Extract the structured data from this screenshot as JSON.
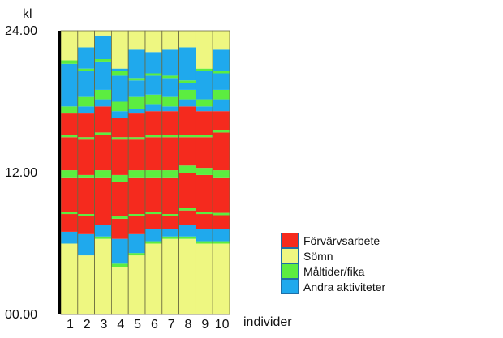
{
  "chart_data": {
    "type": "bar",
    "subtype": "stacked-timeline",
    "ylabel": "kl",
    "xlabel": "individer",
    "y_tick_labels": [
      "00.00",
      "12.00",
      "24.00"
    ],
    "y_tick_values": [
      0,
      12,
      24
    ],
    "ylim": [
      0,
      24
    ],
    "categories": [
      "1",
      "2",
      "3",
      "4",
      "5",
      "6",
      "7",
      "8",
      "9",
      "10"
    ],
    "legend": [
      {
        "key": "work",
        "label": "Förvärvsarbete",
        "color": "#f52a1e"
      },
      {
        "key": "sleep",
        "label": "Sömn",
        "color": "#eef781"
      },
      {
        "key": "meal",
        "label": "Måltider/fika",
        "color": "#5ced40"
      },
      {
        "key": "other",
        "label": "Andra aktiviteter",
        "color": "#1fa9ed"
      }
    ],
    "legend_position": "right",
    "grid": false,
    "individuals": [
      {
        "id": "1",
        "segments": [
          {
            "a": "sleep",
            "from": 0,
            "to": 6.0
          },
          {
            "a": "other",
            "from": 6.0,
            "to": 7.0
          },
          {
            "a": "work",
            "from": 7.0,
            "to": 8.5
          },
          {
            "a": "meal",
            "from": 8.5,
            "to": 8.7
          },
          {
            "a": "work",
            "from": 8.7,
            "to": 11.6
          },
          {
            "a": "meal",
            "from": 11.6,
            "to": 12.2
          },
          {
            "a": "work",
            "from": 12.2,
            "to": 15.0
          },
          {
            "a": "meal",
            "from": 15.0,
            "to": 15.2
          },
          {
            "a": "work",
            "from": 15.2,
            "to": 17.0
          },
          {
            "a": "meal",
            "from": 17.0,
            "to": 17.6
          },
          {
            "a": "other",
            "from": 17.6,
            "to": 21.2
          },
          {
            "a": "meal",
            "from": 21.2,
            "to": 21.5
          },
          {
            "a": "sleep",
            "from": 21.5,
            "to": 24
          }
        ]
      },
      {
        "id": "2",
        "segments": [
          {
            "a": "sleep",
            "from": 0,
            "to": 5.0
          },
          {
            "a": "other",
            "from": 5.0,
            "to": 6.8
          },
          {
            "a": "work",
            "from": 6.8,
            "to": 8.3
          },
          {
            "a": "meal",
            "from": 8.3,
            "to": 8.5
          },
          {
            "a": "work",
            "from": 8.5,
            "to": 11.6
          },
          {
            "a": "meal",
            "from": 11.6,
            "to": 11.8
          },
          {
            "a": "work",
            "from": 11.8,
            "to": 14.8
          },
          {
            "a": "meal",
            "from": 14.8,
            "to": 15.0
          },
          {
            "a": "work",
            "from": 15.0,
            "to": 17.0
          },
          {
            "a": "other",
            "from": 17.0,
            "to": 17.6
          },
          {
            "a": "meal",
            "from": 17.6,
            "to": 18.4
          },
          {
            "a": "other",
            "from": 18.4,
            "to": 20.6
          },
          {
            "a": "meal",
            "from": 20.6,
            "to": 20.8
          },
          {
            "a": "other",
            "from": 20.8,
            "to": 22.6
          },
          {
            "a": "sleep",
            "from": 22.6,
            "to": 24
          }
        ]
      },
      {
        "id": "3",
        "segments": [
          {
            "a": "sleep",
            "from": 0,
            "to": 6.4
          },
          {
            "a": "meal",
            "from": 6.4,
            "to": 6.6
          },
          {
            "a": "other",
            "from": 6.6,
            "to": 7.6
          },
          {
            "a": "work",
            "from": 7.6,
            "to": 11.6
          },
          {
            "a": "meal",
            "from": 11.6,
            "to": 12.2
          },
          {
            "a": "work",
            "from": 12.2,
            "to": 15.2
          },
          {
            "a": "meal",
            "from": 15.2,
            "to": 15.4
          },
          {
            "a": "work",
            "from": 15.4,
            "to": 17.6
          },
          {
            "a": "other",
            "from": 17.6,
            "to": 18.2
          },
          {
            "a": "meal",
            "from": 18.2,
            "to": 19.0
          },
          {
            "a": "other",
            "from": 19.0,
            "to": 21.4
          },
          {
            "a": "meal",
            "from": 21.4,
            "to": 21.6
          },
          {
            "a": "other",
            "from": 21.6,
            "to": 23.6
          },
          {
            "a": "sleep",
            "from": 23.6,
            "to": 24
          }
        ]
      },
      {
        "id": "4",
        "segments": [
          {
            "a": "sleep",
            "from": 0,
            "to": 4.0
          },
          {
            "a": "meal",
            "from": 4.0,
            "to": 4.3
          },
          {
            "a": "other",
            "from": 4.3,
            "to": 6.4
          },
          {
            "a": "work",
            "from": 6.4,
            "to": 8.1
          },
          {
            "a": "meal",
            "from": 8.1,
            "to": 8.3
          },
          {
            "a": "work",
            "from": 8.3,
            "to": 11.2
          },
          {
            "a": "meal",
            "from": 11.2,
            "to": 11.8
          },
          {
            "a": "work",
            "from": 11.8,
            "to": 14.8
          },
          {
            "a": "meal",
            "from": 14.8,
            "to": 15.0
          },
          {
            "a": "work",
            "from": 15.0,
            "to": 16.6
          },
          {
            "a": "other",
            "from": 16.6,
            "to": 17.2
          },
          {
            "a": "meal",
            "from": 17.2,
            "to": 18.0
          },
          {
            "a": "other",
            "from": 18.0,
            "to": 20.2
          },
          {
            "a": "meal",
            "from": 20.2,
            "to": 20.6
          },
          {
            "a": "other",
            "from": 20.6,
            "to": 20.8
          },
          {
            "a": "sleep",
            "from": 20.8,
            "to": 24
          }
        ]
      },
      {
        "id": "5",
        "segments": [
          {
            "a": "sleep",
            "from": 0,
            "to": 5.0
          },
          {
            "a": "meal",
            "from": 5.0,
            "to": 5.2
          },
          {
            "a": "other",
            "from": 5.2,
            "to": 6.8
          },
          {
            "a": "work",
            "from": 6.8,
            "to": 8.3
          },
          {
            "a": "meal",
            "from": 8.3,
            "to": 8.5
          },
          {
            "a": "work",
            "from": 8.5,
            "to": 11.6
          },
          {
            "a": "meal",
            "from": 11.6,
            "to": 12.2
          },
          {
            "a": "work",
            "from": 12.2,
            "to": 14.8
          },
          {
            "a": "meal",
            "from": 14.8,
            "to": 15.0
          },
          {
            "a": "work",
            "from": 15.0,
            "to": 17.0
          },
          {
            "a": "other",
            "from": 17.0,
            "to": 17.4
          },
          {
            "a": "meal",
            "from": 17.4,
            "to": 18.4
          },
          {
            "a": "other",
            "from": 18.4,
            "to": 19.8
          },
          {
            "a": "meal",
            "from": 19.8,
            "to": 20.0
          },
          {
            "a": "other",
            "from": 20.0,
            "to": 22.4
          },
          {
            "a": "sleep",
            "from": 22.4,
            "to": 24
          }
        ]
      },
      {
        "id": "6",
        "segments": [
          {
            "a": "sleep",
            "from": 0,
            "to": 6.0
          },
          {
            "a": "meal",
            "from": 6.0,
            "to": 6.2
          },
          {
            "a": "other",
            "from": 6.2,
            "to": 7.2
          },
          {
            "a": "work",
            "from": 7.2,
            "to": 8.5
          },
          {
            "a": "meal",
            "from": 8.5,
            "to": 8.7
          },
          {
            "a": "work",
            "from": 8.7,
            "to": 11.6
          },
          {
            "a": "meal",
            "from": 11.6,
            "to": 12.2
          },
          {
            "a": "work",
            "from": 12.2,
            "to": 15.0
          },
          {
            "a": "meal",
            "from": 15.0,
            "to": 15.2
          },
          {
            "a": "work",
            "from": 15.2,
            "to": 17.2
          },
          {
            "a": "other",
            "from": 17.2,
            "to": 17.8
          },
          {
            "a": "meal",
            "from": 17.8,
            "to": 18.6
          },
          {
            "a": "other",
            "from": 18.6,
            "to": 20.2
          },
          {
            "a": "meal",
            "from": 20.2,
            "to": 20.4
          },
          {
            "a": "other",
            "from": 20.4,
            "to": 22.2
          },
          {
            "a": "sleep",
            "from": 22.2,
            "to": 24
          }
        ]
      },
      {
        "id": "7",
        "segments": [
          {
            "a": "sleep",
            "from": 0,
            "to": 6.4
          },
          {
            "a": "meal",
            "from": 6.4,
            "to": 6.6
          },
          {
            "a": "other",
            "from": 6.6,
            "to": 7.2
          },
          {
            "a": "work",
            "from": 7.2,
            "to": 8.3
          },
          {
            "a": "meal",
            "from": 8.3,
            "to": 8.5
          },
          {
            "a": "work",
            "from": 8.5,
            "to": 11.6
          },
          {
            "a": "meal",
            "from": 11.6,
            "to": 12.2
          },
          {
            "a": "work",
            "from": 12.2,
            "to": 15.0
          },
          {
            "a": "meal",
            "from": 15.0,
            "to": 15.2
          },
          {
            "a": "work",
            "from": 15.2,
            "to": 17.2
          },
          {
            "a": "other",
            "from": 17.2,
            "to": 17.6
          },
          {
            "a": "meal",
            "from": 17.6,
            "to": 18.4
          },
          {
            "a": "other",
            "from": 18.4,
            "to": 20.0
          },
          {
            "a": "meal",
            "from": 20.0,
            "to": 20.2
          },
          {
            "a": "other",
            "from": 20.2,
            "to": 22.4
          },
          {
            "a": "sleep",
            "from": 22.4,
            "to": 24
          }
        ]
      },
      {
        "id": "8",
        "segments": [
          {
            "a": "sleep",
            "from": 0,
            "to": 6.4
          },
          {
            "a": "meal",
            "from": 6.4,
            "to": 6.6
          },
          {
            "a": "other",
            "from": 6.6,
            "to": 7.6
          },
          {
            "a": "work",
            "from": 7.6,
            "to": 8.8
          },
          {
            "a": "meal",
            "from": 8.8,
            "to": 9.0
          },
          {
            "a": "work",
            "from": 9.0,
            "to": 12.0
          },
          {
            "a": "meal",
            "from": 12.0,
            "to": 12.6
          },
          {
            "a": "work",
            "from": 12.6,
            "to": 15.0
          },
          {
            "a": "meal",
            "from": 15.0,
            "to": 15.2
          },
          {
            "a": "work",
            "from": 15.2,
            "to": 17.6
          },
          {
            "a": "other",
            "from": 17.6,
            "to": 18.2
          },
          {
            "a": "meal",
            "from": 18.2,
            "to": 19.0
          },
          {
            "a": "other",
            "from": 19.0,
            "to": 19.6
          },
          {
            "a": "meal",
            "from": 19.6,
            "to": 19.8
          },
          {
            "a": "other",
            "from": 19.8,
            "to": 22.6
          },
          {
            "a": "sleep",
            "from": 22.6,
            "to": 24
          }
        ]
      },
      {
        "id": "9",
        "segments": [
          {
            "a": "sleep",
            "from": 0,
            "to": 6.0
          },
          {
            "a": "meal",
            "from": 6.0,
            "to": 6.2
          },
          {
            "a": "other",
            "from": 6.2,
            "to": 7.2
          },
          {
            "a": "work",
            "from": 7.2,
            "to": 8.5
          },
          {
            "a": "meal",
            "from": 8.5,
            "to": 8.7
          },
          {
            "a": "work",
            "from": 8.7,
            "to": 11.8
          },
          {
            "a": "meal",
            "from": 11.8,
            "to": 12.4
          },
          {
            "a": "work",
            "from": 12.4,
            "to": 15.0
          },
          {
            "a": "meal",
            "from": 15.0,
            "to": 15.2
          },
          {
            "a": "work",
            "from": 15.2,
            "to": 17.2
          },
          {
            "a": "other",
            "from": 17.2,
            "to": 17.6
          },
          {
            "a": "meal",
            "from": 17.6,
            "to": 18.2
          },
          {
            "a": "other",
            "from": 18.2,
            "to": 20.6
          },
          {
            "a": "meal",
            "from": 20.6,
            "to": 20.8
          },
          {
            "a": "sleep",
            "from": 20.8,
            "to": 24
          }
        ]
      },
      {
        "id": "10",
        "segments": [
          {
            "a": "sleep",
            "from": 0,
            "to": 6.0
          },
          {
            "a": "meal",
            "from": 6.0,
            "to": 6.2
          },
          {
            "a": "other",
            "from": 6.2,
            "to": 7.2
          },
          {
            "a": "work",
            "from": 7.2,
            "to": 8.4
          },
          {
            "a": "meal",
            "from": 8.4,
            "to": 8.6
          },
          {
            "a": "work",
            "from": 8.6,
            "to": 11.6
          },
          {
            "a": "meal",
            "from": 11.6,
            "to": 12.2
          },
          {
            "a": "work",
            "from": 12.2,
            "to": 15.4
          },
          {
            "a": "meal",
            "from": 15.4,
            "to": 15.6
          },
          {
            "a": "work",
            "from": 15.6,
            "to": 17.2
          },
          {
            "a": "other",
            "from": 17.2,
            "to": 18.2
          },
          {
            "a": "meal",
            "from": 18.2,
            "to": 19.0
          },
          {
            "a": "other",
            "from": 19.0,
            "to": 20.4
          },
          {
            "a": "meal",
            "from": 20.4,
            "to": 20.6
          },
          {
            "a": "other",
            "from": 20.6,
            "to": 22.4
          },
          {
            "a": "sleep",
            "from": 22.4,
            "to": 24
          }
        ]
      }
    ]
  }
}
